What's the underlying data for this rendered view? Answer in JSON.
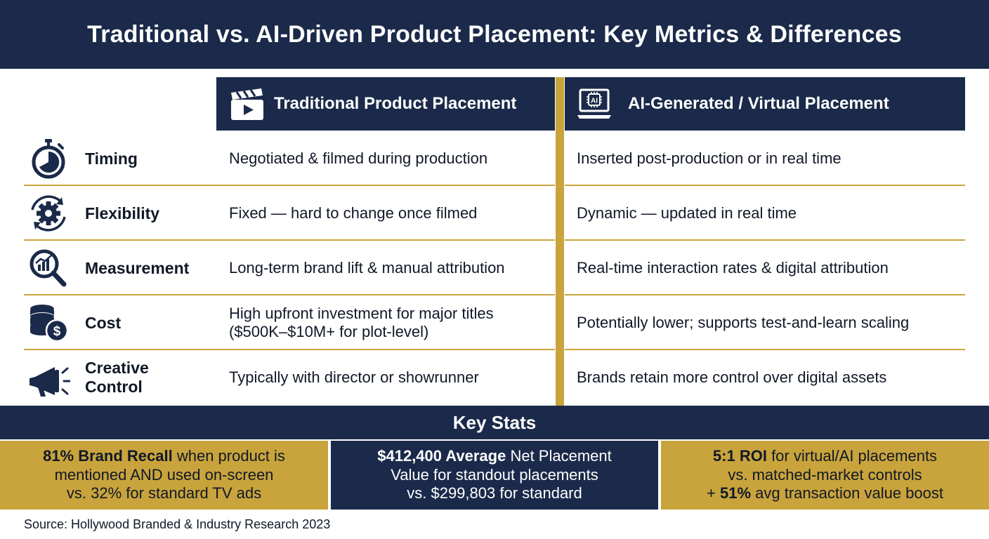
{
  "title": "Traditional vs. AI-Driven Product Placement: Key Metrics & Differences",
  "columns": {
    "traditional": {
      "label": "Traditional Product Placement",
      "icon": "clapperboard-icon"
    },
    "ai": {
      "label": "AI-Generated / Virtual Placement",
      "icon": "ai-laptop-icon"
    }
  },
  "rows": [
    {
      "label": "Timing",
      "icon": "stopwatch-icon",
      "traditional": "Negotiated & filmed during production",
      "ai": "Inserted post-production or in real time"
    },
    {
      "label": "Flexibility",
      "icon": "gear-refresh-icon",
      "traditional": "Fixed — hard to change once filmed",
      "ai": "Dynamic — updated in real time"
    },
    {
      "label": "Measurement",
      "icon": "magnifier-chart-icon",
      "traditional": "Long-term brand lift & manual attribution",
      "ai": "Real-time interaction rates & digital attribution"
    },
    {
      "label": "Cost",
      "icon": "coins-dollar-icon",
      "traditional_line1": "High upfront investment for major titles",
      "traditional_line2": "($500K–$10M+ for plot-level)",
      "ai": "Potentially lower; supports test-and-learn scaling"
    },
    {
      "label_line1": "Creative",
      "label_line2": "Control",
      "icon": "megaphone-icon",
      "traditional": "Typically with director or showrunner",
      "ai": "Brands retain more control over digital assets"
    }
  ],
  "key_stats": {
    "heading": "Key Stats",
    "items": [
      {
        "bold": "81% Brand Recall",
        "line1_rest": " when product is",
        "line2": "mentioned AND used on-screen",
        "line3": "vs. 32% for standard TV ads"
      },
      {
        "bold": "$412,400 Average",
        "line1_rest": " Net Placement",
        "line2": "Value for standout placements",
        "line3": "vs. $299,803 for standard"
      },
      {
        "bold": "5:1 ROI",
        "line1_rest": " for virtual/AI placements",
        "line2": "vs. matched-market controls",
        "line3_prefix": "+ ",
        "line3_bold": "51%",
        "line3_rest": " avg transaction value boost"
      }
    ]
  },
  "source": "Source: Hollywood Branded & Industry Research 2023",
  "colors": {
    "navy": "#1b2a4a",
    "gold": "#c9a43c",
    "text": "#111827"
  }
}
